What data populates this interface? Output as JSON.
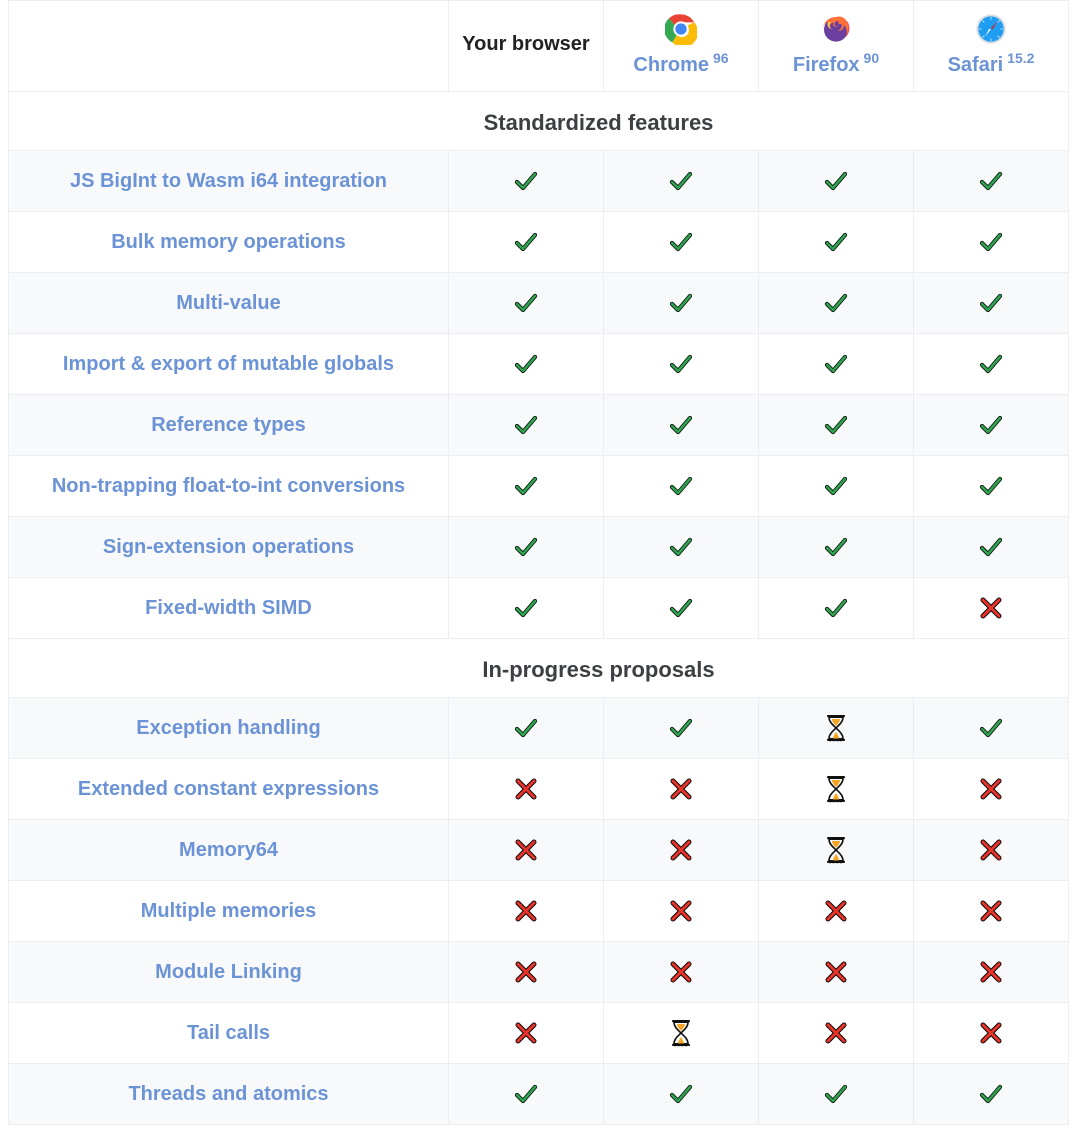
{
  "colors": {
    "link": "#6b93d6",
    "text": "#202124",
    "section_text": "#3c4043",
    "border": "#eceff1",
    "row_alt_bg": "#f8f9fa",
    "row_bg": "#ffffff",
    "check_fill": "#2ea44f",
    "check_stroke": "#0a0a0a",
    "cross_fill": "#e8342b",
    "cross_stroke": "#0a0a0a",
    "hourglass_frame": "#111111",
    "hourglass_sand": "#f6a623"
  },
  "header": {
    "empty_label": "",
    "columns": [
      {
        "id": "your",
        "icon": "none",
        "name": "Your browser",
        "version": "",
        "plain": true
      },
      {
        "id": "chrome",
        "icon": "chrome",
        "name": "Chrome",
        "version": "96",
        "plain": false
      },
      {
        "id": "firefox",
        "icon": "firefox",
        "name": "Firefox",
        "version": "90",
        "plain": false
      },
      {
        "id": "safari",
        "icon": "safari",
        "name": "Safari",
        "version": "15.2",
        "plain": false
      }
    ]
  },
  "sections": [
    {
      "title": "Standardized features",
      "rows": [
        {
          "label": "JS BigInt to Wasm i64 integration",
          "cells": [
            "check",
            "check",
            "check",
            "check"
          ]
        },
        {
          "label": "Bulk memory operations",
          "cells": [
            "check",
            "check",
            "check",
            "check"
          ]
        },
        {
          "label": "Multi-value",
          "cells": [
            "check",
            "check",
            "check",
            "check"
          ]
        },
        {
          "label": "Import & export of mutable globals",
          "cells": [
            "check",
            "check",
            "check",
            "check"
          ]
        },
        {
          "label": "Reference types",
          "cells": [
            "check",
            "check",
            "check",
            "check"
          ]
        },
        {
          "label": "Non-trapping float-to-int conversions",
          "cells": [
            "check",
            "check",
            "check",
            "check"
          ]
        },
        {
          "label": "Sign-extension operations",
          "cells": [
            "check",
            "check",
            "check",
            "check"
          ]
        },
        {
          "label": "Fixed-width SIMD",
          "cells": [
            "check",
            "check",
            "check",
            "cross"
          ]
        }
      ]
    },
    {
      "title": "In-progress proposals",
      "rows": [
        {
          "label": "Exception handling",
          "cells": [
            "check",
            "check",
            "hourglass",
            "check"
          ]
        },
        {
          "label": "Extended constant expressions",
          "cells": [
            "cross",
            "cross",
            "hourglass",
            "cross"
          ]
        },
        {
          "label": "Memory64",
          "cells": [
            "cross",
            "cross",
            "hourglass",
            "cross"
          ]
        },
        {
          "label": "Multiple memories",
          "cells": [
            "cross",
            "cross",
            "cross",
            "cross"
          ]
        },
        {
          "label": "Module Linking",
          "cells": [
            "cross",
            "cross",
            "cross",
            "cross"
          ]
        },
        {
          "label": "Tail calls",
          "cells": [
            "cross",
            "hourglass",
            "cross",
            "cross"
          ]
        },
        {
          "label": "Threads and atomics",
          "cells": [
            "check",
            "check",
            "check",
            "check"
          ]
        }
      ]
    }
  ]
}
